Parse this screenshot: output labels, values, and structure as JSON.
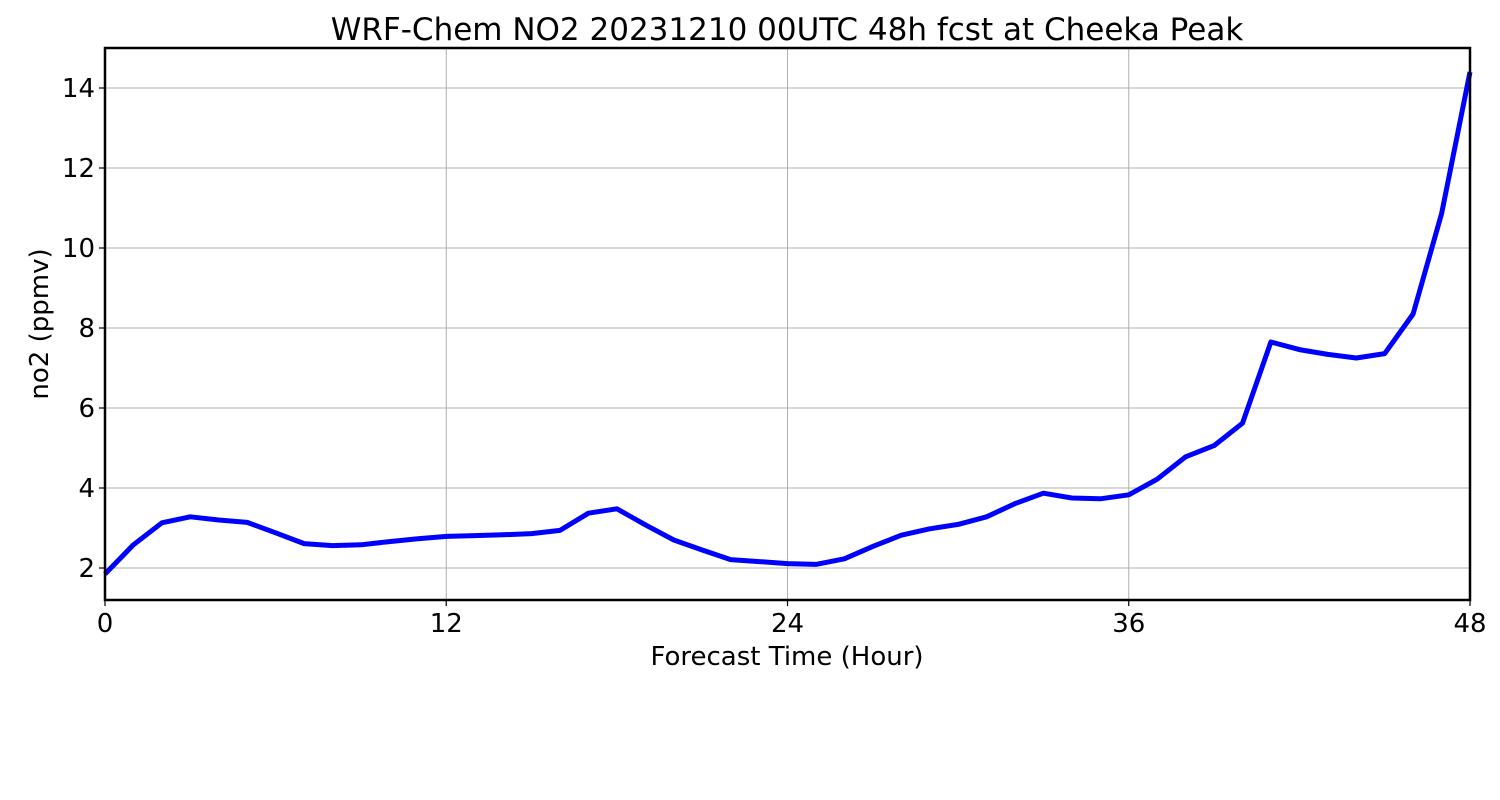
{
  "chart_data": {
    "type": "line",
    "title": "WRF-Chem NO2  20231210 00UTC 48h fcst at Cheeka Peak",
    "xlabel": "Forecast Time (Hour)",
    "ylabel": "no2  (ppmv)",
    "xlim": [
      0,
      48
    ],
    "ylim": [
      1.2,
      15.0
    ],
    "xticks": [
      0,
      12,
      24,
      36,
      48
    ],
    "yticks": [
      2,
      4,
      6,
      8,
      10,
      12,
      14
    ],
    "grid": true,
    "series": [
      {
        "color": "#0000ff",
        "x": [
          0,
          1,
          2,
          3,
          4,
          5,
          6,
          7,
          8,
          9,
          10,
          11,
          12,
          13,
          14,
          15,
          16,
          17,
          18,
          19,
          20,
          21,
          22,
          23,
          24,
          25,
          26,
          27,
          28,
          29,
          30,
          31,
          32,
          33,
          34,
          35,
          36,
          37,
          38,
          39,
          40,
          41,
          42,
          43,
          44,
          45,
          46,
          47,
          48
        ],
        "values": [
          1.85,
          2.58,
          3.13,
          3.28,
          3.2,
          3.14,
          2.88,
          2.61,
          2.56,
          2.58,
          2.66,
          2.73,
          2.79,
          2.81,
          2.83,
          2.86,
          2.94,
          3.37,
          3.48,
          3.08,
          2.7,
          2.45,
          2.21,
          2.16,
          2.11,
          2.09,
          2.23,
          2.54,
          2.82,
          2.98,
          3.09,
          3.28,
          3.61,
          3.87,
          3.75,
          3.73,
          3.83,
          4.22,
          4.78,
          5.06,
          5.62,
          7.65,
          7.46,
          7.34,
          7.25,
          7.36,
          8.35,
          10.86,
          14.4
        ]
      }
    ]
  }
}
